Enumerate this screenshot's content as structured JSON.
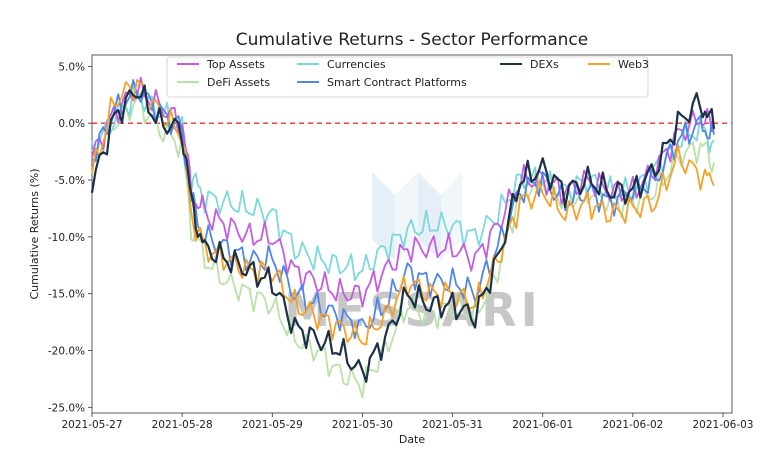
{
  "colors": {
    "top_assets": "#c25de0",
    "defi_assets": "#b9e2a8",
    "currencies": "#7dd8dc",
    "smart_contract_platforms": "#4f86e8",
    "dexs": "#1b3147",
    "web3": "#f5a12a",
    "zero_line": "#e8342f"
  },
  "watermark": "MESSARI",
  "chart_data": {
    "type": "line",
    "title": "Cumulative Returns - Sector Performance",
    "xlabel": "Date",
    "ylabel": "Cumulative Returns (%)",
    "xlim": [
      0,
      7.1
    ],
    "ylim": [
      -25.5,
      6.0
    ],
    "x_ticks": [
      0,
      1,
      2,
      3,
      4,
      5,
      6,
      7
    ],
    "x_tick_labels": [
      "2021-05-27",
      "2021-05-28",
      "2021-05-29",
      "2021-05-30",
      "2021-05-31",
      "2021-06-01",
      "2021-06-02",
      "2021-06-03"
    ],
    "y_ticks": [
      5,
      0,
      -5,
      -10,
      -15,
      -20,
      -25
    ],
    "y_tick_labels": [
      "5.0%",
      "0.0%",
      "-5.0%",
      "-10.0%",
      "-15.0%",
      "-20.0%",
      "-25.0%"
    ],
    "reference_line": {
      "y": 0,
      "style": "dashed"
    },
    "legend_position": "top-center",
    "base_x": [
      0,
      0.25,
      0.5,
      0.75,
      1,
      1.1,
      1.25,
      1.5,
      1.75,
      2,
      2.25,
      2.5,
      2.75,
      3,
      3.25,
      3.5,
      3.75,
      4,
      4.25,
      4.5,
      4.75,
      5,
      5.25,
      5.5,
      5.75,
      6,
      6.25,
      6.5,
      6.75,
      6.9
    ],
    "series": [
      {
        "name": "Top Assets",
        "color_key": "top_assets",
        "values": [
          -3,
          1,
          3,
          1.5,
          0,
          -6,
          -8,
          -9,
          -10,
          -10,
          -13,
          -14,
          -15,
          -15,
          -13,
          -11,
          -11,
          -11,
          -12,
          -9,
          -5,
          -5,
          -6,
          -5,
          -6,
          -6,
          -4,
          -1,
          0.5,
          -0.5
        ]
      },
      {
        "name": "DeFi Assets",
        "color_key": "defi_assets",
        "values": [
          -3.5,
          0,
          2,
          -0.5,
          -2,
          -9,
          -12,
          -14,
          -15,
          -16,
          -19,
          -20,
          -22,
          -23,
          -20,
          -16,
          -17,
          -16,
          -17,
          -13,
          -6,
          -5,
          -7,
          -6,
          -7,
          -7,
          -6,
          -3,
          -2,
          -3.5
        ]
      },
      {
        "name": "Currencies",
        "color_key": "currencies",
        "values": [
          -2.5,
          0.5,
          2.5,
          1,
          -0.5,
          -5,
          -6.5,
          -7,
          -7.5,
          -8,
          -11,
          -12,
          -12.5,
          -13,
          -11,
          -9.5,
          -9,
          -9,
          -10,
          -8,
          -5,
          -5,
          -6,
          -5,
          -6,
          -6,
          -4,
          -1.5,
          -0.5,
          -1.5
        ]
      },
      {
        "name": "Smart Contract Platforms",
        "color_key": "smart_contract_platforms",
        "values": [
          -3,
          1,
          3,
          1,
          -0.5,
          -7,
          -10,
          -11,
          -12,
          -12,
          -15,
          -16,
          -17,
          -18,
          -16,
          -13,
          -14,
          -14,
          -15,
          -11,
          -6,
          -5,
          -7,
          -6,
          -7,
          -6,
          -5,
          -1.5,
          0,
          -1
        ]
      },
      {
        "name": "DEXs",
        "color_key": "dexs",
        "values": [
          -5.5,
          0.5,
          3,
          0,
          -0.5,
          -7,
          -11,
          -12,
          -13,
          -14,
          -18,
          -19,
          -20,
          -22,
          -19,
          -15,
          -16,
          -16,
          -17,
          -12,
          -5,
          -4,
          -6,
          -5,
          -6,
          -6,
          -4,
          0,
          2,
          -0.5
        ]
      },
      {
        "name": "Web3",
        "color_key": "web3",
        "values": [
          -4.5,
          2,
          3.5,
          1,
          -1,
          -8,
          -11,
          -12,
          -13,
          -13,
          -16,
          -17,
          -18,
          -19,
          -17,
          -14,
          -15,
          -15,
          -16,
          -12,
          -7,
          -6,
          -8,
          -7,
          -8,
          -7.5,
          -7,
          -3,
          -4.5,
          -5.5
        ]
      }
    ]
  }
}
